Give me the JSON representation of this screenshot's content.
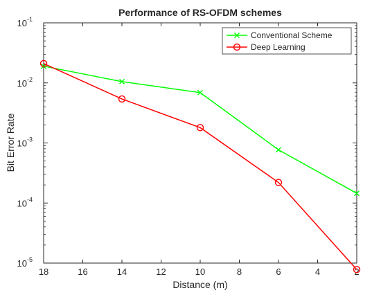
{
  "chart_data": {
    "type": "line",
    "title": "Performance of RS-OFDM schemes",
    "xlabel": "Distance (m)",
    "ylabel": "Bit Error Rate",
    "x_reversed": true,
    "xlim": [
      2,
      18
    ],
    "ylim": [
      1e-05,
      0.1
    ],
    "yscale": "log",
    "xticks": [
      18,
      16,
      14,
      12,
      10,
      8,
      6,
      4,
      2
    ],
    "yticks": [
      {
        "value": 0.1,
        "base": "10",
        "exp": "-1"
      },
      {
        "value": 0.01,
        "base": "10",
        "exp": "-2"
      },
      {
        "value": 0.001,
        "base": "10",
        "exp": "-3"
      },
      {
        "value": 0.0001,
        "base": "10",
        "exp": "-4"
      },
      {
        "value": 1e-05,
        "base": "10",
        "exp": "-5"
      }
    ],
    "grid": false,
    "legend_position": "top-right",
    "x": [
      18,
      14,
      10,
      6,
      2
    ],
    "series": [
      {
        "name": "Conventional Scheme",
        "color": "#00ff00",
        "marker": "x",
        "values": [
          0.019,
          0.0105,
          0.0069,
          0.00077,
          0.000145
        ]
      },
      {
        "name": "Deep Learning",
        "color": "#ff0000",
        "marker": "o",
        "values": [
          0.021,
          0.0054,
          0.0018,
          0.00022,
          7.8e-06
        ]
      }
    ]
  }
}
